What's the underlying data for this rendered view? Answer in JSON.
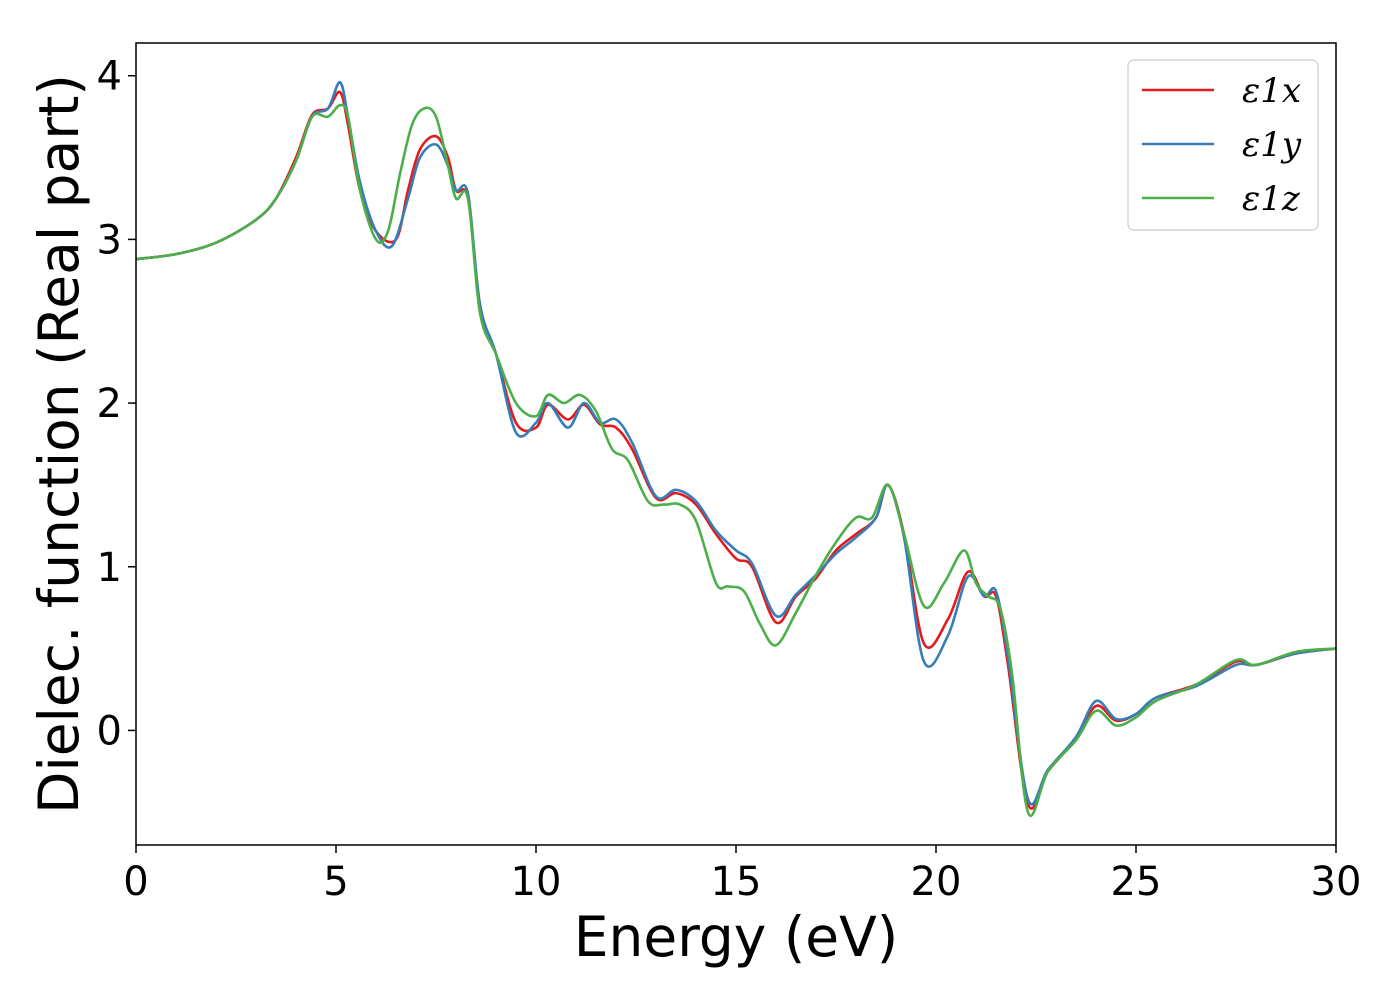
{
  "chart_data": {
    "type": "line",
    "xlabel": "Energy (eV)",
    "ylabel": "Dielec. function (Real part)",
    "xlim": [
      0,
      30
    ],
    "ylim": [
      -0.7,
      4.2
    ],
    "grid": false,
    "legend_position": "top-right",
    "x_ticks": [
      "0",
      "5",
      "10",
      "15",
      "20",
      "25",
      "30"
    ],
    "y_ticks": [
      "0",
      "1",
      "2",
      "3",
      "4"
    ],
    "series": [
      {
        "name": "ε1x",
        "color": "#e41a1c",
        "x": [
          0,
          1,
          2,
          3,
          3.5,
          4,
          4.4,
          4.8,
          5.1,
          5.3,
          5.6,
          6.0,
          6.5,
          6.8,
          7.1,
          7.5,
          7.8,
          8.0,
          8.3,
          8.6,
          9.0,
          9.5,
          10.0,
          10.3,
          10.8,
          11.2,
          11.6,
          12.0,
          12.4,
          13.0,
          13.5,
          14.0,
          14.5,
          15.0,
          15.4,
          16.0,
          16.5,
          17.0,
          17.5,
          18.0,
          18.5,
          18.8,
          19.2,
          19.7,
          20.3,
          20.8,
          21.2,
          21.5,
          21.8,
          22.3,
          22.8,
          23.5,
          24.0,
          24.5,
          25.0,
          25.5,
          26.5,
          27.5,
          28.0,
          29.0,
          30.0
        ],
        "values": [
          2.88,
          2.91,
          2.98,
          3.12,
          3.25,
          3.5,
          3.76,
          3.8,
          3.9,
          3.7,
          3.3,
          3.05,
          3.0,
          3.3,
          3.55,
          3.63,
          3.5,
          3.3,
          3.25,
          2.6,
          2.3,
          1.88,
          1.85,
          1.99,
          1.9,
          1.99,
          1.87,
          1.85,
          1.72,
          1.42,
          1.45,
          1.38,
          1.2,
          1.05,
          1.0,
          0.66,
          0.82,
          0.93,
          1.1,
          1.2,
          1.3,
          1.5,
          1.2,
          0.53,
          0.68,
          0.97,
          0.82,
          0.82,
          0.4,
          -0.45,
          -0.25,
          -0.05,
          0.15,
          0.06,
          0.1,
          0.2,
          0.28,
          0.42,
          0.4,
          0.47,
          0.5
        ]
      },
      {
        "name": "ε1y",
        "color": "#377eb8",
        "x": [
          0,
          1,
          2,
          3,
          3.5,
          4,
          4.4,
          4.8,
          5.1,
          5.3,
          5.6,
          6.0,
          6.4,
          6.8,
          7.1,
          7.5,
          7.8,
          8.0,
          8.3,
          8.6,
          9.0,
          9.5,
          10.0,
          10.3,
          10.8,
          11.2,
          11.6,
          12.0,
          12.4,
          13.0,
          13.5,
          14.0,
          14.5,
          15.0,
          15.4,
          16.0,
          16.5,
          17.0,
          17.5,
          18.0,
          18.5,
          18.8,
          19.2,
          19.7,
          20.3,
          20.8,
          21.2,
          21.5,
          21.8,
          22.3,
          22.8,
          23.5,
          24.0,
          24.5,
          25.0,
          25.5,
          26.5,
          27.5,
          28.0,
          29.0,
          30.0
        ],
        "values": [
          2.88,
          2.91,
          2.98,
          3.12,
          3.25,
          3.48,
          3.75,
          3.8,
          3.96,
          3.75,
          3.35,
          3.05,
          2.96,
          3.25,
          3.5,
          3.58,
          3.45,
          3.3,
          3.28,
          2.6,
          2.3,
          1.82,
          1.88,
          2.0,
          1.85,
          2.0,
          1.88,
          1.9,
          1.76,
          1.43,
          1.47,
          1.4,
          1.22,
          1.1,
          1.02,
          0.7,
          0.83,
          0.95,
          1.08,
          1.18,
          1.3,
          1.5,
          1.18,
          0.42,
          0.58,
          0.94,
          0.82,
          0.85,
          0.45,
          -0.42,
          -0.24,
          -0.04,
          0.18,
          0.07,
          0.1,
          0.2,
          0.27,
          0.4,
          0.4,
          0.47,
          0.5
        ]
      },
      {
        "name": "ε1z",
        "color": "#4daf4a",
        "x": [
          0,
          1,
          2,
          3,
          3.5,
          4,
          4.4,
          4.8,
          5.1,
          5.3,
          5.6,
          6.0,
          6.3,
          6.6,
          6.9,
          7.2,
          7.5,
          7.8,
          8.0,
          8.3,
          8.6,
          9.0,
          9.5,
          10.0,
          10.3,
          10.7,
          11.1,
          11.5,
          11.9,
          12.3,
          12.8,
          13.2,
          13.6,
          14.0,
          14.5,
          14.8,
          15.2,
          15.6,
          16.0,
          16.5,
          17.0,
          17.5,
          18.0,
          18.4,
          18.8,
          19.2,
          19.7,
          20.2,
          20.7,
          21.0,
          21.3,
          21.6,
          21.9,
          22.3,
          22.8,
          23.5,
          24.0,
          24.5,
          25.0,
          25.5,
          26.5,
          27.5,
          28.0,
          29.0,
          30.0
        ],
        "values": [
          2.88,
          2.91,
          2.98,
          3.12,
          3.25,
          3.48,
          3.75,
          3.75,
          3.82,
          3.75,
          3.3,
          3.0,
          3.05,
          3.4,
          3.7,
          3.8,
          3.75,
          3.45,
          3.25,
          3.25,
          2.55,
          2.3,
          2.0,
          1.92,
          2.05,
          2.0,
          2.05,
          1.95,
          1.72,
          1.65,
          1.4,
          1.38,
          1.38,
          1.28,
          0.9,
          0.88,
          0.85,
          0.65,
          0.52,
          0.72,
          0.95,
          1.15,
          1.3,
          1.3,
          1.5,
          1.2,
          0.76,
          0.9,
          1.1,
          0.9,
          0.82,
          0.75,
          0.35,
          -0.5,
          -0.25,
          -0.06,
          0.12,
          0.03,
          0.08,
          0.18,
          0.28,
          0.43,
          0.4,
          0.48,
          0.5
        ]
      }
    ]
  }
}
